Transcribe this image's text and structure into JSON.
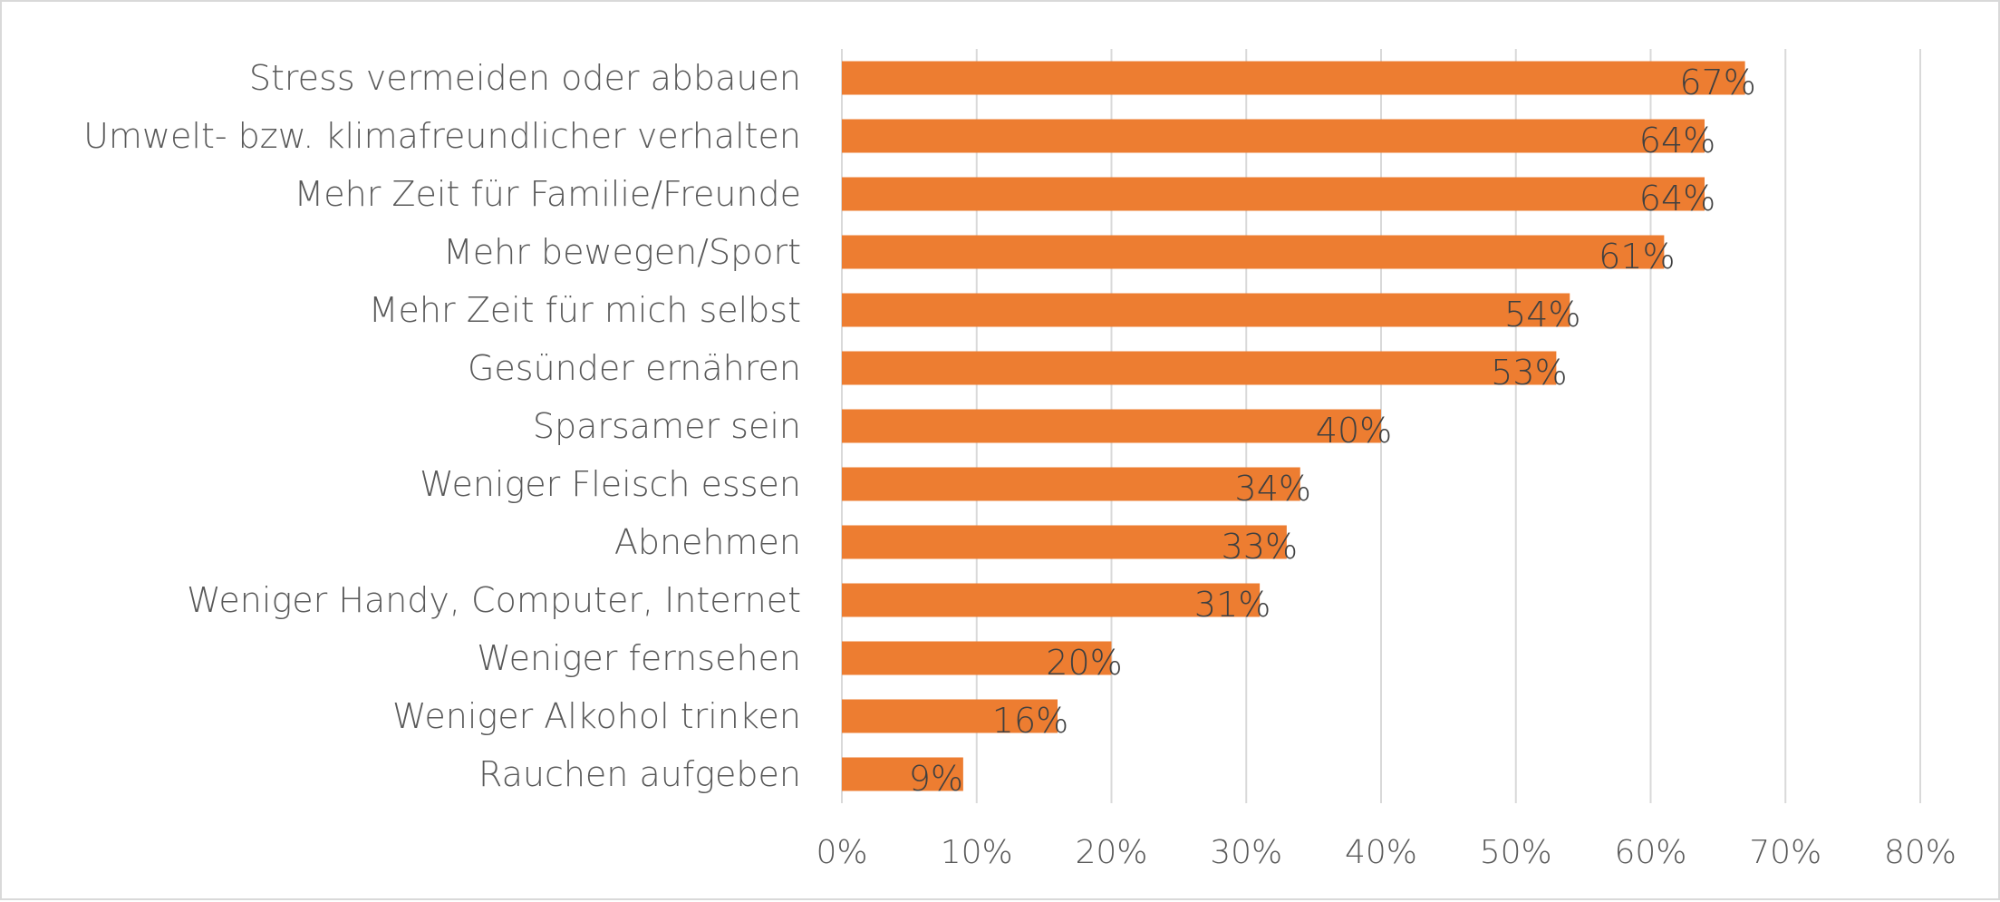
{
  "colors": {
    "bar": "#ed7d31",
    "grid": "#d9d9d9",
    "text": "#595959",
    "label": "#404040"
  },
  "chart_data": {
    "type": "bar",
    "orientation": "horizontal",
    "title": "",
    "xlabel": "",
    "ylabel": "",
    "categories": [
      "Stress vermeiden oder abbauen",
      "Umwelt- bzw. klimafreundlicher verhalten",
      "Mehr Zeit für Familie/Freunde",
      "Mehr bewegen/Sport",
      "Mehr Zeit für mich selbst",
      "Gesünder ernähren",
      "Sparsamer sein",
      "Weniger Fleisch essen",
      "Abnehmen",
      "Weniger Handy, Computer, Internet",
      "Weniger fernsehen",
      "Weniger Alkohol trinken",
      "Rauchen aufgeben"
    ],
    "values": [
      67,
      64,
      64,
      61,
      54,
      53,
      40,
      34,
      33,
      31,
      20,
      16,
      9
    ],
    "data_labels": [
      "67%",
      "64%",
      "64%",
      "61%",
      "54%",
      "53%",
      "40%",
      "34%",
      "33%",
      "31%",
      "20%",
      "16%",
      "9%"
    ],
    "xlim": [
      0,
      80
    ],
    "ticks": [
      0,
      10,
      20,
      30,
      40,
      50,
      60,
      70,
      80
    ],
    "tick_labels": [
      "0%",
      "10%",
      "20%",
      "30%",
      "40%",
      "50%",
      "60%",
      "70%",
      "80%"
    ],
    "grid": true,
    "legend": "none"
  }
}
